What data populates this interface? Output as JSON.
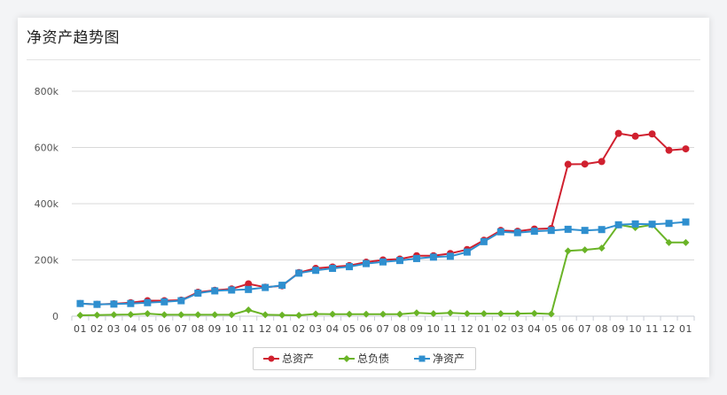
{
  "card": {
    "title": "净资产趋势图"
  },
  "chart_data": {
    "type": "line",
    "title": "",
    "xlabel": "",
    "ylabel": "",
    "ylim": [
      0,
      800000
    ],
    "y_ticks": [
      0,
      200000,
      400000,
      600000,
      800000
    ],
    "y_tick_labels": [
      "0",
      "200k",
      "400k",
      "600k",
      "800k"
    ],
    "grid": "horizontal",
    "legend_position": "bottom",
    "categories": [
      "01",
      "02",
      "03",
      "04",
      "05",
      "06",
      "07",
      "08",
      "09",
      "10",
      "11",
      "12",
      "01",
      "02",
      "03",
      "04",
      "05",
      "06",
      "07",
      "08",
      "09",
      "10",
      "11",
      "12",
      "01",
      "02",
      "03",
      "04",
      "05",
      "06",
      "07",
      "08",
      "09",
      "10",
      "11",
      "12",
      "01"
    ],
    "series": [
      {
        "name": "总资产",
        "color": "#d0202f",
        "marker": "circle",
        "values": [
          45000,
          42000,
          44000,
          48000,
          55000,
          55000,
          57000,
          85000,
          92000,
          97000,
          115000,
          103000,
          108000,
          155000,
          170000,
          175000,
          180000,
          192000,
          200000,
          203000,
          215000,
          215000,
          223000,
          237000,
          270000,
          305000,
          302000,
          310000,
          312000,
          540000,
          541000,
          550000,
          650000,
          640000,
          648000,
          590000,
          595000
        ]
      },
      {
        "name": "总负债",
        "color": "#6ab427",
        "marker": "diamond",
        "values": [
          3000,
          4000,
          5000,
          6000,
          9000,
          5000,
          5000,
          5000,
          5000,
          5000,
          22000,
          5000,
          4000,
          3000,
          8000,
          7000,
          7000,
          7000,
          7000,
          7000,
          12000,
          9000,
          12000,
          9000,
          9000,
          9000,
          9000,
          10000,
          8000,
          232000,
          236000,
          242000,
          325000,
          315000,
          325000,
          262000,
          262000
        ]
      },
      {
        "name": "净资产",
        "color": "#2f8fcf",
        "marker": "square",
        "values": [
          45000,
          42000,
          43000,
          45000,
          48000,
          51000,
          55000,
          82000,
          90000,
          93000,
          95000,
          102000,
          110000,
          153000,
          163000,
          170000,
          176000,
          187000,
          193000,
          198000,
          205000,
          210000,
          213000,
          228000,
          265000,
          300000,
          297000,
          302000,
          305000,
          309000,
          305000,
          308000,
          325000,
          328000,
          327000,
          330000,
          335000
        ]
      }
    ]
  }
}
